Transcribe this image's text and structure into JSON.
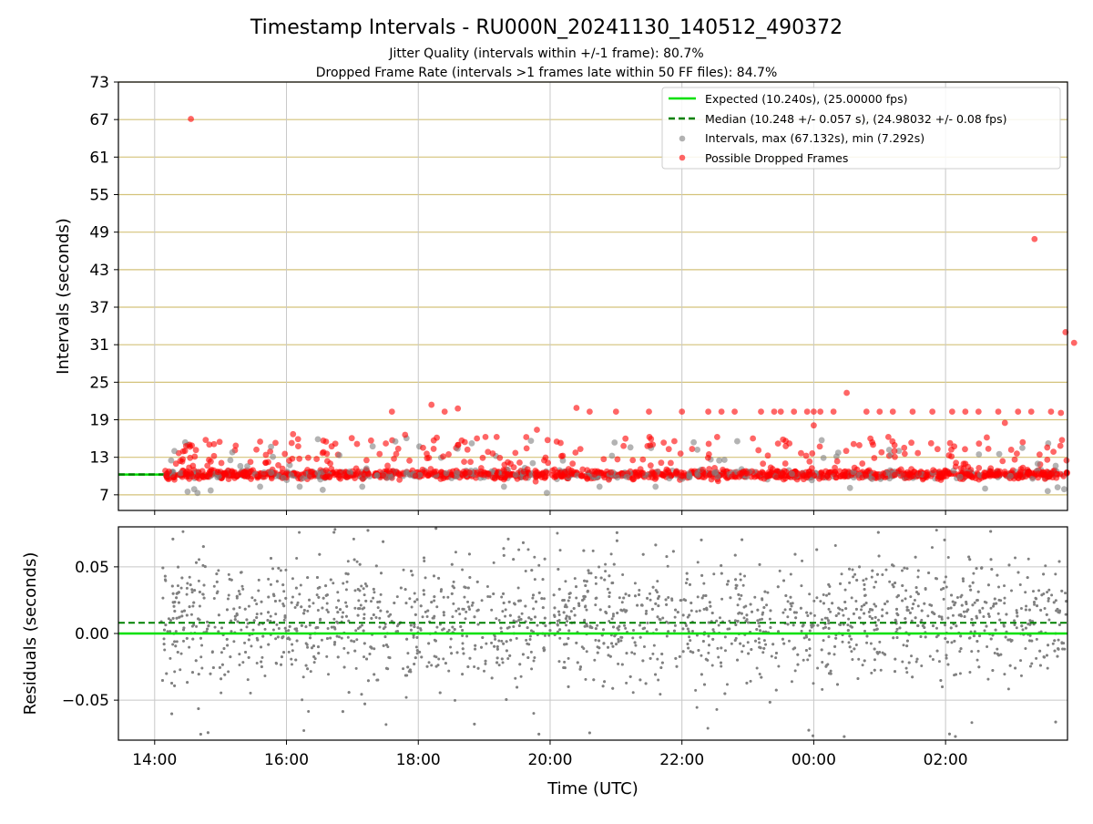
{
  "chart_data": [
    {
      "type": "scatter",
      "title": "Timestamp Intervals - RU000N_20241130_140512_490372",
      "subtitle_lines": [
        "Jitter Quality (intervals within +/-1 frame): 80.7%",
        "Dropped Frame Rate (intervals >1 frames late within 50 FF files): 84.7%"
      ],
      "xlabel": "",
      "ylabel": "Intervals (seconds)",
      "xlim_hours": [
        13.45,
        27.85
      ],
      "ylim": [
        4.5,
        73
      ],
      "yticks": [
        7,
        13,
        19,
        25,
        31,
        37,
        43,
        49,
        55,
        61,
        67,
        73
      ],
      "grid": true,
      "legend_position": "top-right",
      "legend": [
        "Expected (10.240s), (25.00000 fps)",
        "Median (10.248 +/- 0.057 s), (24.98032 +/- 0.08 fps)",
        "Intervals, max (67.132s), min (7.292s)",
        "Possible Dropped Frames"
      ],
      "reference_lines": {
        "expected": 10.24,
        "median": 10.248
      },
      "colors": {
        "expected": "#00e000",
        "median": "#008000",
        "intervals": "#808080",
        "dropped": "#ff0000",
        "grid_h": "#d4c27a",
        "grid_v": "#c8c8c8"
      },
      "series": [
        {
          "name": "Possible Dropped Frames",
          "x_hours": [
            14.55,
            27.35,
            27.82,
            27.95,
            14.9,
            16.1,
            17.6,
            18.2,
            18.4,
            18.6,
            19.8,
            20.4,
            20.6,
            21.0,
            21.5,
            22.0,
            22.4,
            22.6,
            22.8,
            23.2,
            23.4,
            23.5,
            23.7,
            23.9,
            24.0,
            24.1,
            24.3,
            24.5,
            24.8,
            25.0,
            25.2,
            25.5,
            25.8,
            26.1,
            26.3,
            26.5,
            26.8,
            27.1,
            27.3,
            27.6,
            27.75,
            15.6,
            16.6,
            17.8,
            20.1,
            24.0,
            24.9,
            26.9
          ],
          "y": [
            67.1,
            47.9,
            33.0,
            31.3,
            15.1,
            16.7,
            20.3,
            21.4,
            20.3,
            20.8,
            17.4,
            20.9,
            20.3,
            20.3,
            20.3,
            20.3,
            20.3,
            20.3,
            20.3,
            20.3,
            20.3,
            20.3,
            20.3,
            20.3,
            20.3,
            20.3,
            20.3,
            23.3,
            20.3,
            20.3,
            20.3,
            20.3,
            20.3,
            20.3,
            20.3,
            20.3,
            20.3,
            20.3,
            20.3,
            20.3,
            20.1,
            15.5,
            15.5,
            16.6,
            15.5,
            18.1,
            15.0,
            18.5
          ]
        },
        {
          "name": "Intervals, max (67.132s), min (7.292s)",
          "x_hours": [
            14.5,
            14.6,
            14.65,
            14.85,
            14.25,
            14.3,
            15.3,
            15.6,
            16.2,
            16.55,
            17.15,
            19.3,
            19.95,
            20.75,
            21.6,
            24.55,
            26.6,
            27.55,
            27.7,
            27.8
          ],
          "y": [
            7.5,
            7.9,
            7.3,
            7.7,
            12.5,
            14.0,
            11.6,
            8.3,
            8.3,
            7.8,
            8.3,
            8.3,
            7.3,
            8.3,
            8.3,
            8.1,
            8.0,
            7.6,
            8.2,
            7.9
          ]
        }
      ]
    },
    {
      "type": "scatter",
      "title": "",
      "xlabel": "Time (UTC)",
      "ylabel": "Residuals (seconds)",
      "xlim_hours": [
        13.45,
        27.85
      ],
      "ylim": [
        -0.08,
        0.08
      ],
      "yticks": [
        -0.05,
        0.0,
        0.05
      ],
      "ytick_labels": [
        "−0.05",
        "0.00",
        "0.05"
      ],
      "xticks_hours": [
        14,
        16,
        18,
        20,
        22,
        24,
        26
      ],
      "xtick_labels": [
        "14:00",
        "16:00",
        "18:00",
        "20:00",
        "22:00",
        "00:00",
        "02:00"
      ],
      "grid": true,
      "reference_lines": {
        "expected": 0.0,
        "median": 0.008
      },
      "series": [
        {
          "name": "Residuals",
          "distribution": "dense scatter, centred near 0.01, spread approx -0.08 to 0.08",
          "x_range_hours": [
            14.1,
            27.85
          ]
        }
      ]
    }
  ]
}
